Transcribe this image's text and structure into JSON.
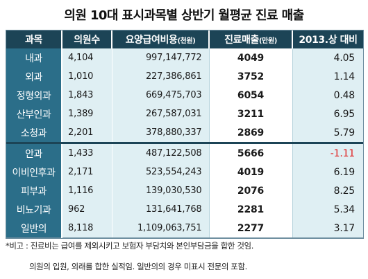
{
  "title": "의원 10대 표시과목별 상반기 월평균 진료 매출",
  "headers": {
    "dept": "과목",
    "docs": "의원수",
    "amount_main": "요양급여비용",
    "amount_unit": "(천원)",
    "sales_main": "진료매출",
    "sales_unit": "(만원)",
    "ratio": "2013.상 대비"
  },
  "notes": {
    "line1": "*비고 : 진료비는 급여를 제외시키고 보험자 부담치와 본인부담금을 합한 것임.",
    "line2": "의원의 입원, 외래를 합한 실적임. 일반의의 경우 미표시 전문의 포함."
  },
  "chart_data": {
    "type": "table",
    "title": "의원 10대 표시과목별 상반기 월평균 진료 매출",
    "columns": [
      "과목",
      "의원수",
      "요양급여비용(천원)",
      "진료매출(만원)",
      "2013.상 대비"
    ],
    "rows": [
      {
        "dept": "내과",
        "docs": "4,104",
        "amount": "997,147,772",
        "sales": "4049",
        "ratio": "4.05"
      },
      {
        "dept": "외과",
        "docs": "1,010",
        "amount": "227,386,861",
        "sales": "3752",
        "ratio": "1.14"
      },
      {
        "dept": "정형외과",
        "docs": "1,843",
        "amount": "669,475,703",
        "sales": "6054",
        "ratio": "0.48"
      },
      {
        "dept": "산부인과",
        "docs": "1,389",
        "amount": "267,587,031",
        "sales": "3211",
        "ratio": "6.95"
      },
      {
        "dept": "소청과",
        "docs": "2,201",
        "amount": "378,880,337",
        "sales": "2869",
        "ratio": "5.79"
      },
      {
        "dept": "안과",
        "docs": "1,433",
        "amount": "487,122,508",
        "sales": "5666",
        "ratio": "-1.11"
      },
      {
        "dept": "이비인후과",
        "docs": "2,171",
        "amount": "523,554,243",
        "sales": "4019",
        "ratio": "6.19"
      },
      {
        "dept": "피부과",
        "docs": "1,116",
        "amount": "139,030,530",
        "sales": "2076",
        "ratio": "8.25"
      },
      {
        "dept": "비뇨기과",
        "docs": "962",
        "amount": "131,641,768",
        "sales": "2281",
        "ratio": "5.34"
      },
      {
        "dept": "일반의",
        "docs": "8,118",
        "amount": "1,109,063,751",
        "sales": "2277",
        "ratio": "3.17"
      }
    ],
    "negative_color": "#e02020",
    "header_color": "#1c4456",
    "dept_column_color": "#2b6e89",
    "cell_tint_color": "#dfeff3"
  }
}
